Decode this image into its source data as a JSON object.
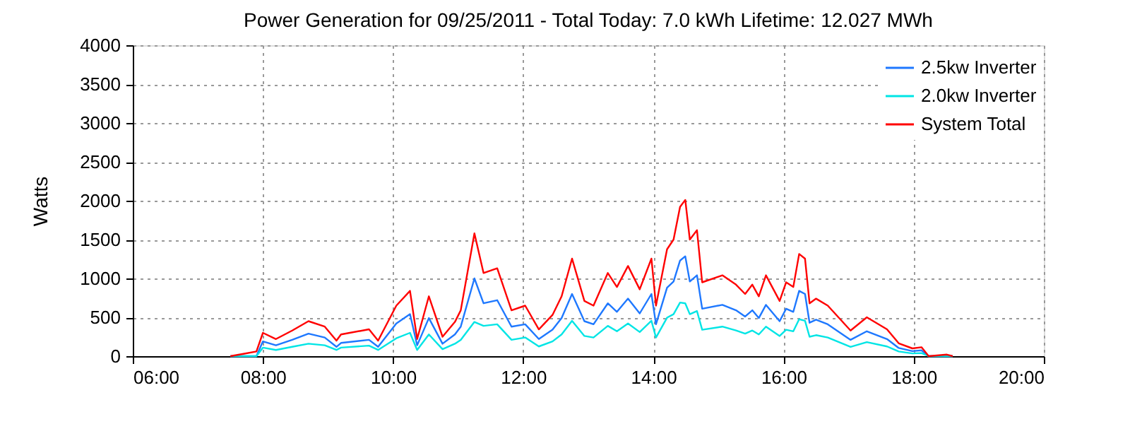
{
  "chart_data": {
    "type": "line",
    "title": "Power Generation for 09/25/2011 - Total Today: 7.0 kWh   Lifetime: 12.027 MWh",
    "ylabel": "Watts",
    "x": [
      7.5,
      7.7,
      7.9,
      8.0,
      8.2,
      8.45,
      8.7,
      8.95,
      9.13,
      9.2,
      9.63,
      9.77,
      10.05,
      10.26,
      10.37,
      10.55,
      10.76,
      10.95,
      11.04,
      11.25,
      11.39,
      11.6,
      11.82,
      12.03,
      12.24,
      12.45,
      12.59,
      12.75,
      12.94,
      13.08,
      13.3,
      13.44,
      13.61,
      13.79,
      13.97,
      14.04,
      14.21,
      14.31,
      14.41,
      14.49,
      14.56,
      14.67,
      14.75,
      15.06,
      15.27,
      15.41,
      15.52,
      15.62,
      15.73,
      15.94,
      16.04,
      16.15,
      16.24,
      16.33,
      16.4,
      16.5,
      16.68,
      17.03,
      17.28,
      17.59,
      17.77,
      17.98,
      18.12,
      18.23,
      18.51,
      18.6
    ],
    "series": [
      {
        "name": "2.5kw Inverter",
        "color": "#1e78ff",
        "values": [
          0,
          0,
          0,
          190,
          140,
          210,
          290,
          240,
          120,
          170,
          210,
          120,
          420,
          540,
          140,
          490,
          160,
          280,
          380,
          1000,
          680,
          720,
          380,
          410,
          220,
          340,
          490,
          800,
          450,
          410,
          680,
          570,
          740,
          550,
          800,
          410,
          880,
          960,
          1230,
          1285,
          960,
          1040,
          610,
          660,
          590,
          510,
          590,
          490,
          660,
          450,
          610,
          570,
          840,
          800,
          430,
          470,
          410,
          210,
          320,
          220,
          105,
          65,
          75,
          0,
          0,
          0
        ]
      },
      {
        "name": "2.0kw Inverter",
        "color": "#00e5e5",
        "values": [
          0,
          0,
          0,
          110,
          80,
          120,
          160,
          140,
          80,
          110,
          135,
          80,
          230,
          300,
          80,
          280,
          90,
          160,
          210,
          440,
          390,
          410,
          210,
          240,
          125,
          190,
          280,
          455,
          260,
          240,
          390,
          320,
          420,
          310,
          455,
          240,
          495,
          540,
          690,
          680,
          540,
          580,
          340,
          380,
          330,
          290,
          330,
          280,
          380,
          260,
          340,
          320,
          475,
          455,
          250,
          270,
          240,
          120,
          180,
          125,
          60,
          35,
          40,
          0,
          0,
          0
        ]
      },
      {
        "name": "System Total",
        "color": "#ff0000",
        "values": [
          0,
          30,
          60,
          300,
          220,
          330,
          450,
          380,
          200,
          280,
          345,
          200,
          650,
          840,
          220,
          770,
          250,
          440,
          590,
          1580,
          1070,
          1130,
          590,
          650,
          345,
          530,
          770,
          1255,
          710,
          650,
          1070,
          890,
          1160,
          860,
          1255,
          650,
          1375,
          1500,
          1920,
          2010,
          1500,
          1620,
          950,
          1040,
          920,
          800,
          920,
          770,
          1040,
          710,
          950,
          890,
          1315,
          1255,
          680,
          740,
          650,
          330,
          500,
          345,
          165,
          100,
          115,
          0,
          20,
          0
        ]
      }
    ],
    "xlim": [
      6,
      20
    ],
    "xticks": [
      {
        "value": 6,
        "label": "06:00"
      },
      {
        "value": 8,
        "label": "08:00"
      },
      {
        "value": 10,
        "label": "10:00"
      },
      {
        "value": 12,
        "label": "12:00"
      },
      {
        "value": 14,
        "label": "14:00"
      },
      {
        "value": 16,
        "label": "16:00"
      },
      {
        "value": 18,
        "label": "18:00"
      },
      {
        "value": 20,
        "label": "20:00"
      }
    ],
    "ylim": [
      0,
      4000
    ],
    "yticks": [
      0,
      500,
      1000,
      1500,
      2000,
      2500,
      3000,
      3500,
      4000
    ],
    "grid": true,
    "legend": "top right",
    "marker": "none",
    "line_style": "solid"
  }
}
